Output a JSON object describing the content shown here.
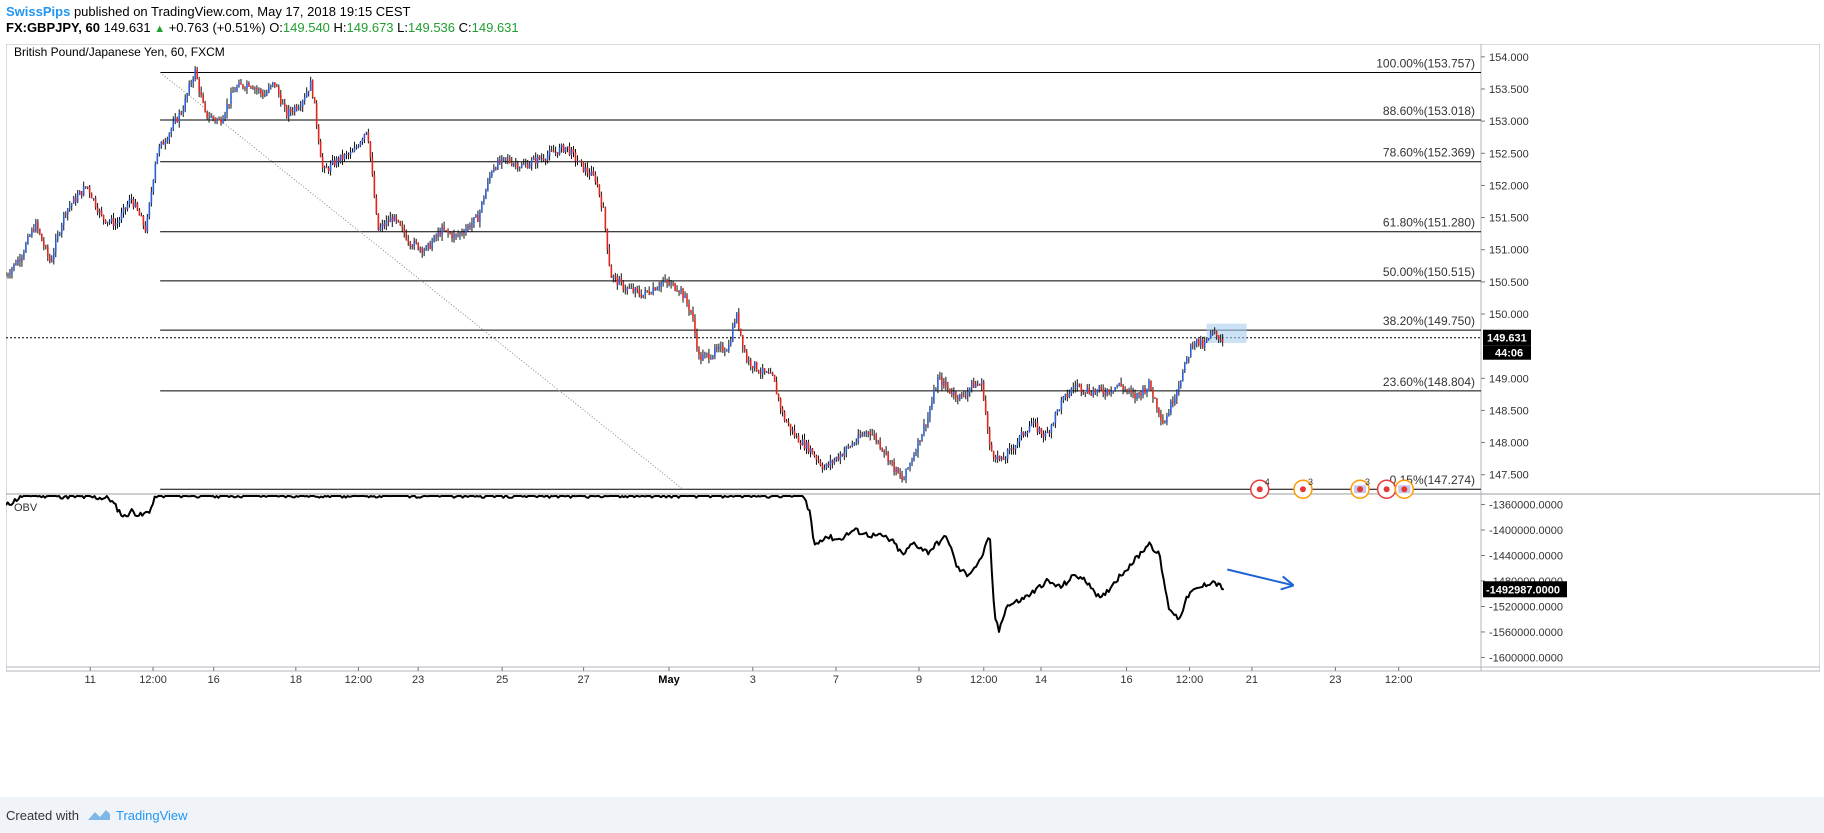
{
  "header": {
    "author": "SwissPips",
    "published": "published on TradingView.com, May 17, 2018 19:15 CEST",
    "symbol": "FX:GBPJPY, 60",
    "last": "149.631",
    "change": "+0.763 (+0.51%)",
    "o_label": "O:",
    "o_value": "149.540",
    "h_label": "H:",
    "h_value": "149.673",
    "l_label": "L:",
    "l_value": "149.536",
    "c_label": "C:",
    "c_value": "149.631"
  },
  "footer": {
    "created_label": "Created with",
    "brand": "TradingView"
  },
  "colors": {
    "bull": "#2c5fd6",
    "bear": "#e1261c",
    "fib_line": "#000000",
    "last_label_bg": "#000000",
    "arrow": "#1e63d6",
    "event_red": "#e53935",
    "event_orange": "#ff9800",
    "highlight": "#a9cdee"
  },
  "chart_data": {
    "type": "candlestick",
    "title": "British Pound/Japanese Yen, 60, FXCM",
    "price_axis": {
      "ticks": [
        "154.000",
        "153.500",
        "153.000",
        "152.500",
        "152.000",
        "151.500",
        "151.000",
        "150.500",
        "150.000",
        "149.000",
        "148.500",
        "148.000",
        "147.500"
      ],
      "tick_values": [
        154.0,
        153.5,
        153.0,
        152.5,
        152.0,
        151.5,
        151.0,
        150.5,
        150.0,
        149.0,
        148.5,
        148.0,
        147.5
      ],
      "range": [
        147.2,
        154.2
      ]
    },
    "last_price": {
      "value": 149.631,
      "label": "149.631",
      "countdown": "44:06"
    },
    "x_axis": {
      "ticks": [
        "11",
        "12:00",
        "16",
        "18",
        "12:00",
        "23",
        "25",
        "27",
        "May",
        "3",
        "7",
        "9",
        "12:00",
        "14",
        "16",
        "12:00",
        "21",
        "23",
        "12:00"
      ],
      "tick_positions": [
        0.0571,
        0.0997,
        0.1408,
        0.1965,
        0.2389,
        0.2794,
        0.3364,
        0.3916,
        0.4495,
        0.5063,
        0.5627,
        0.619,
        0.6629,
        0.7017,
        0.7597,
        0.8024,
        0.8447,
        0.9013,
        0.9442
      ]
    },
    "fibonacci": [
      {
        "label": "100.00%(153.757)",
        "value": 153.757
      },
      {
        "label": "88.60%(153.018)",
        "value": 153.018
      },
      {
        "label": "78.60%(152.369)",
        "value": 152.369
      },
      {
        "label": "61.80%(151.280)",
        "value": 151.28
      },
      {
        "label": "50.00%(150.515)",
        "value": 150.515
      },
      {
        "label": "38.20%(149.750)",
        "value": 149.75
      },
      {
        "label": "23.60%(148.804)",
        "value": 148.804
      },
      {
        "label": "0.15%(147.274)",
        "value": 147.274
      }
    ],
    "price_anchors": [
      [
        0.0,
        150.6
      ],
      [
        0.01,
        150.9
      ],
      [
        0.02,
        151.4
      ],
      [
        0.03,
        150.8
      ],
      [
        0.04,
        151.6
      ],
      [
        0.055,
        152.0
      ],
      [
        0.065,
        151.5
      ],
      [
        0.075,
        151.4
      ],
      [
        0.085,
        151.8
      ],
      [
        0.095,
        151.3
      ],
      [
        0.102,
        152.5
      ],
      [
        0.11,
        152.8
      ],
      [
        0.12,
        153.2
      ],
      [
        0.128,
        153.8
      ],
      [
        0.135,
        153.1
      ],
      [
        0.145,
        153.0
      ],
      [
        0.155,
        153.5
      ],
      [
        0.165,
        153.6
      ],
      [
        0.175,
        153.4
      ],
      [
        0.182,
        153.6
      ],
      [
        0.19,
        153.1
      ],
      [
        0.2,
        153.3
      ],
      [
        0.207,
        153.6
      ],
      [
        0.215,
        152.2
      ],
      [
        0.225,
        152.4
      ],
      [
        0.235,
        152.5
      ],
      [
        0.245,
        152.9
      ],
      [
        0.252,
        151.3
      ],
      [
        0.262,
        151.5
      ],
      [
        0.275,
        151.1
      ],
      [
        0.285,
        151.0
      ],
      [
        0.295,
        151.3
      ],
      [
        0.305,
        151.2
      ],
      [
        0.32,
        151.5
      ],
      [
        0.33,
        152.3
      ],
      [
        0.34,
        152.4
      ],
      [
        0.35,
        152.3
      ],
      [
        0.36,
        152.4
      ],
      [
        0.37,
        152.5
      ],
      [
        0.38,
        152.6
      ],
      [
        0.39,
        152.3
      ],
      [
        0.4,
        152.1
      ],
      [
        0.405,
        151.6
      ],
      [
        0.41,
        150.6
      ],
      [
        0.42,
        150.4
      ],
      [
        0.432,
        150.3
      ],
      [
        0.445,
        150.5
      ],
      [
        0.457,
        150.4
      ],
      [
        0.465,
        150.0
      ],
      [
        0.47,
        149.3
      ],
      [
        0.48,
        149.4
      ],
      [
        0.49,
        149.5
      ],
      [
        0.495,
        150.0
      ],
      [
        0.502,
        149.3
      ],
      [
        0.512,
        149.1
      ],
      [
        0.52,
        149.0
      ],
      [
        0.527,
        148.4
      ],
      [
        0.535,
        148.1
      ],
      [
        0.545,
        147.9
      ],
      [
        0.555,
        147.6
      ],
      [
        0.565,
        147.8
      ],
      [
        0.575,
        148.0
      ],
      [
        0.585,
        148.2
      ],
      [
        0.595,
        147.9
      ],
      [
        0.602,
        147.6
      ],
      [
        0.608,
        147.4
      ],
      [
        0.615,
        147.8
      ],
      [
        0.625,
        148.4
      ],
      [
        0.632,
        149.0
      ],
      [
        0.64,
        148.8
      ],
      [
        0.648,
        148.7
      ],
      [
        0.655,
        148.9
      ],
      [
        0.662,
        148.9
      ],
      [
        0.667,
        147.9
      ],
      [
        0.675,
        147.7
      ],
      [
        0.685,
        148.0
      ],
      [
        0.695,
        148.3
      ],
      [
        0.705,
        148.1
      ],
      [
        0.715,
        148.6
      ],
      [
        0.725,
        148.9
      ],
      [
        0.735,
        148.8
      ],
      [
        0.745,
        148.8
      ],
      [
        0.755,
        148.9
      ],
      [
        0.765,
        148.7
      ],
      [
        0.775,
        148.9
      ],
      [
        0.785,
        148.3
      ],
      [
        0.79,
        148.6
      ],
      [
        0.798,
        149.1
      ],
      [
        0.805,
        149.6
      ],
      [
        0.812,
        149.5
      ],
      [
        0.818,
        149.7
      ],
      [
        0.826,
        149.6
      ]
    ],
    "obv_axis": {
      "ticks": [
        "-1360000.0000",
        "-1400000.0000",
        "-1440000.0000",
        "-1480000.0000",
        "-1520000.0000",
        "-1560000.0000",
        "-1600000.0000"
      ],
      "tick_values": [
        -1360000,
        -1400000,
        -1440000,
        -1480000,
        -1520000,
        -1560000,
        -1600000
      ],
      "range": [
        -1615000,
        -1345000
      ]
    },
    "obv_label": "OBV",
    "obv_last": {
      "value": -1492987,
      "label": "-1492987.0000"
    },
    "obv_anchors": [
      [
        0.0,
        -1362000
      ],
      [
        0.005,
        -1355000
      ],
      [
        0.012,
        -1345000
      ],
      [
        0.025,
        -1345000
      ],
      [
        0.07,
        -1350000
      ],
      [
        0.075,
        -1365000
      ],
      [
        0.08,
        -1380000
      ],
      [
        0.085,
        -1370000
      ],
      [
        0.092,
        -1378000
      ],
      [
        0.098,
        -1368000
      ],
      [
        0.102,
        -1345000
      ],
      [
        0.11,
        -1345000
      ],
      [
        0.54,
        -1345000
      ],
      [
        0.545,
        -1370000
      ],
      [
        0.548,
        -1425000
      ],
      [
        0.555,
        -1410000
      ],
      [
        0.565,
        -1415000
      ],
      [
        0.575,
        -1400000
      ],
      [
        0.585,
        -1408000
      ],
      [
        0.595,
        -1410000
      ],
      [
        0.602,
        -1420000
      ],
      [
        0.608,
        -1440000
      ],
      [
        0.615,
        -1420000
      ],
      [
        0.625,
        -1435000
      ],
      [
        0.632,
        -1420000
      ],
      [
        0.638,
        -1410000
      ],
      [
        0.645,
        -1460000
      ],
      [
        0.652,
        -1470000
      ],
      [
        0.66,
        -1450000
      ],
      [
        0.667,
        -1410000
      ],
      [
        0.67,
        -1530000
      ],
      [
        0.673,
        -1560000
      ],
      [
        0.678,
        -1520000
      ],
      [
        0.688,
        -1510000
      ],
      [
        0.698,
        -1495000
      ],
      [
        0.705,
        -1480000
      ],
      [
        0.715,
        -1490000
      ],
      [
        0.725,
        -1470000
      ],
      [
        0.735,
        -1485000
      ],
      [
        0.742,
        -1510000
      ],
      [
        0.752,
        -1480000
      ],
      [
        0.76,
        -1460000
      ],
      [
        0.768,
        -1440000
      ],
      [
        0.775,
        -1420000
      ],
      [
        0.782,
        -1440000
      ],
      [
        0.788,
        -1520000
      ],
      [
        0.795,
        -1540000
      ],
      [
        0.802,
        -1500000
      ],
      [
        0.81,
        -1490000
      ],
      [
        0.818,
        -1480000
      ],
      [
        0.826,
        -1493000
      ]
    ],
    "events": [
      {
        "label": "4",
        "type": "red",
        "pos": 0.85
      },
      {
        "label": "3",
        "type": "orange",
        "pos": 0.8793
      },
      {
        "label": "3",
        "type": "flag",
        "pos": 0.918
      },
      {
        "label": "",
        "type": "red",
        "pos": 0.936
      },
      {
        "label": "",
        "type": "flag",
        "pos": 0.948
      }
    ]
  }
}
